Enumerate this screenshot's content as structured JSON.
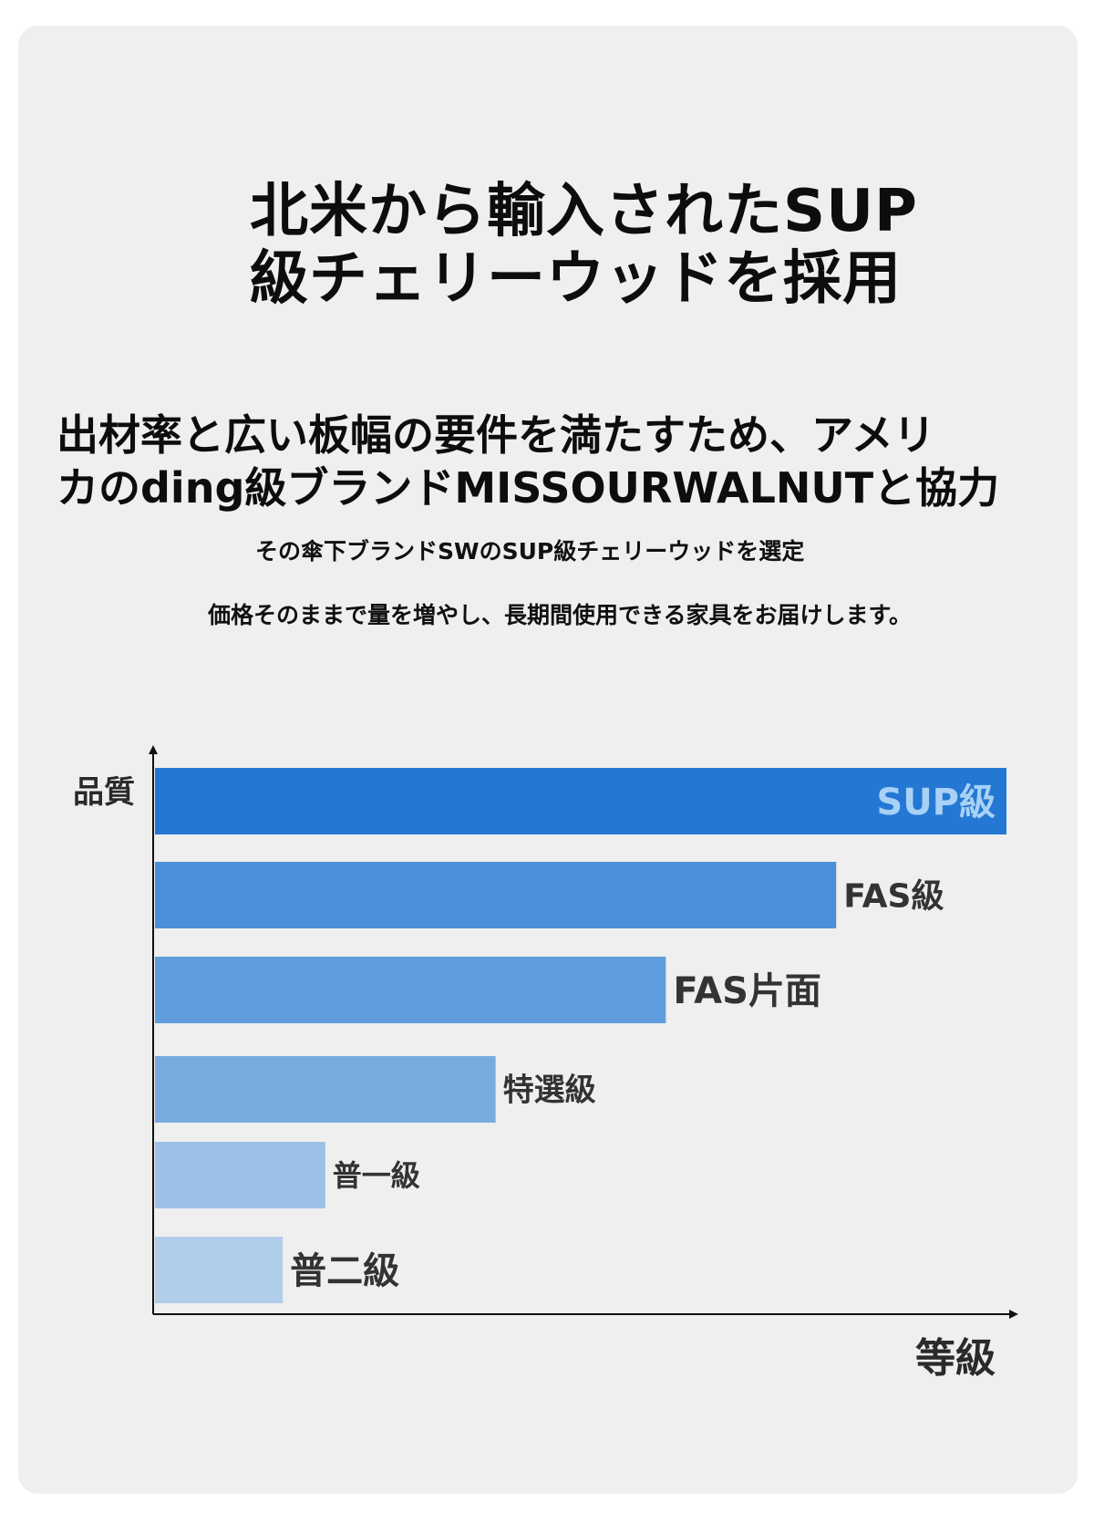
{
  "title": {
    "line1": "北米から輸入されたSUP",
    "line2": "級チェリーウッドを採用"
  },
  "subtitle": {
    "line1": "出材率と広い板幅の要件を満たすため、アメリ",
    "line2": "カのding級ブランドMISSOURWALNUTと協力"
  },
  "notes": {
    "line1": "その傘下ブランドSWのSUP級チェリーウッドを選定",
    "line2": "価格そのままで量を増やし、長期間使用できる家具をお届けします。"
  },
  "chart_data": {
    "type": "bar",
    "orientation": "horizontal",
    "ylabel": "品質",
    "xlabel": "等級",
    "categories": [
      "SUP級",
      "FAS級",
      "FAS片面",
      "特選級",
      "普一級",
      "普二級"
    ],
    "values": [
      5,
      4,
      3,
      2,
      1,
      0.75
    ],
    "xlim": [
      0,
      5
    ],
    "grid": false,
    "legend": "none",
    "colors": [
      "#2478d3",
      "#4a8fd9",
      "#609ddc",
      "#78aade",
      "#9dc0e6",
      "#b0cdea"
    ],
    "label_colors": [
      "#a9d1f6",
      "#333333",
      "#333333",
      "#333333",
      "#333333",
      "#333333"
    ]
  }
}
